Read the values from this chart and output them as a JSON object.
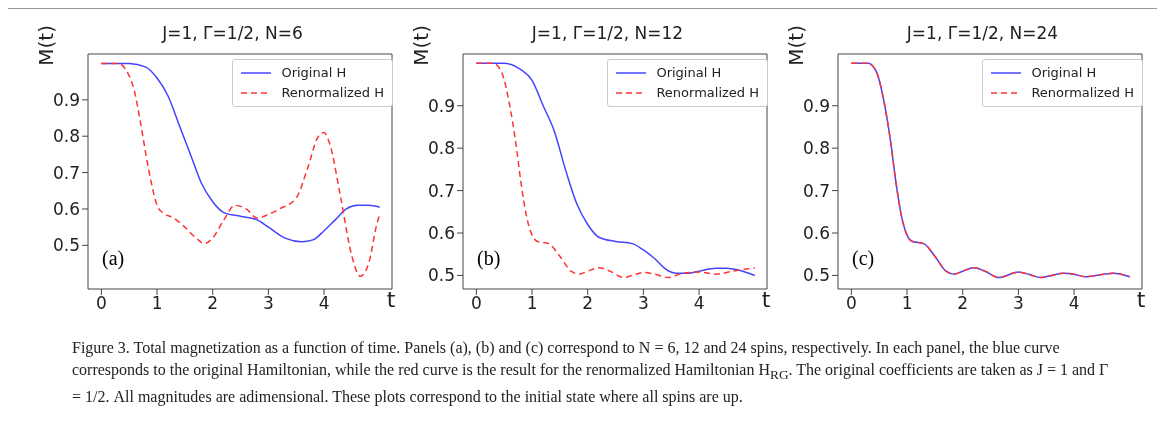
{
  "chart_data": [
    {
      "type": "line",
      "title": "J=1, Γ=1/2, N=6",
      "xlabel": "t",
      "ylabel": "M(t)",
      "xlim": [
        -0.24,
        5.22
      ],
      "ylim": [
        0.38,
        1.026
      ],
      "xticks": [
        0,
        1,
        2,
        3,
        4
      ],
      "yticks": [
        0.5,
        0.6,
        0.7,
        0.8,
        0.9
      ],
      "grid": false,
      "legend": "top right",
      "marker": "none",
      "annotations": [
        "(a)",
        "Figure 3. Total magnetization as a function of time. Panels (a), (b) and (c) correspond to N = 6, 12 and 24 spins, respectively. In each panel, the blue curve corresponds to the original Hamiltonian, while the red curve is the result for the renormalized Hamiltonian H$_{RG}$. The original coefficients are taken as J = 1 and Γ = 1/2. All magnitudes are adimensional. These plots correspond to the initial state where all spins are up."
      ],
      "series": [
        {
          "name": "Original H",
          "color": "#4444ff",
          "line_style": "solid",
          "x": [
            0,
            0.5,
            0.8,
            1.0,
            1.2,
            1.4,
            1.6,
            1.8,
            2.0,
            2.2,
            2.5,
            2.8,
            3.0,
            3.3,
            3.6,
            3.8,
            4.0,
            4.2,
            4.4,
            4.6,
            4.8,
            5.0
          ],
          "values": [
            1.0,
            1.0,
            0.99,
            0.96,
            0.91,
            0.83,
            0.75,
            0.67,
            0.62,
            0.59,
            0.58,
            0.57,
            0.55,
            0.52,
            0.51,
            0.515,
            0.54,
            0.57,
            0.6,
            0.61,
            0.61,
            0.605
          ]
        },
        {
          "name": "Renormalized H",
          "color": "#ff3333",
          "line_style": "dashed",
          "x": [
            0,
            0.3,
            0.45,
            0.6,
            0.7,
            0.8,
            0.9,
            1.0,
            1.1,
            1.3,
            1.5,
            1.7,
            1.85,
            2.0,
            2.2,
            2.4,
            2.6,
            2.8,
            3.0,
            3.2,
            3.5,
            3.7,
            3.9,
            4.0,
            4.1,
            4.3,
            4.5,
            4.65,
            4.8,
            4.95,
            5.0
          ],
          "values": [
            1.0,
            1.0,
            0.98,
            0.92,
            0.84,
            0.75,
            0.67,
            0.61,
            0.59,
            0.575,
            0.55,
            0.52,
            0.505,
            0.52,
            0.57,
            0.61,
            0.6,
            0.575,
            0.585,
            0.6,
            0.63,
            0.71,
            0.8,
            0.81,
            0.78,
            0.63,
            0.47,
            0.415,
            0.45,
            0.56,
            0.585
          ]
        }
      ]
    },
    {
      "type": "line",
      "title": "J=1, Γ=1/2, N=12",
      "xlabel": "t",
      "ylabel": "M(t)",
      "xlim": [
        -0.24,
        5.22
      ],
      "ylim": [
        0.468,
        1.022
      ],
      "xticks": [
        0,
        1,
        2,
        3,
        4
      ],
      "yticks": [
        0.5,
        0.6,
        0.7,
        0.8,
        0.9
      ],
      "grid": false,
      "legend": "top right",
      "marker": "none",
      "annotations": [
        "(b)"
      ],
      "series": [
        {
          "name": "Original H",
          "color": "#4444ff",
          "line_style": "solid",
          "x": [
            0,
            0.5,
            0.8,
            1.0,
            1.2,
            1.4,
            1.6,
            1.8,
            2.0,
            2.2,
            2.5,
            2.8,
            3.0,
            3.2,
            3.4,
            3.6,
            3.8,
            4.0,
            4.3,
            4.5,
            4.7,
            5.0
          ],
          "values": [
            1.0,
            1.0,
            0.985,
            0.96,
            0.9,
            0.84,
            0.75,
            0.67,
            0.62,
            0.59,
            0.58,
            0.575,
            0.56,
            0.54,
            0.515,
            0.505,
            0.505,
            0.51,
            0.517,
            0.517,
            0.513,
            0.5
          ]
        },
        {
          "name": "Renormalized H",
          "color": "#ff3333",
          "line_style": "dashed",
          "x": [
            0,
            0.3,
            0.45,
            0.6,
            0.7,
            0.8,
            0.9,
            1.0,
            1.1,
            1.3,
            1.5,
            1.7,
            1.85,
            2.0,
            2.2,
            2.4,
            2.65,
            2.8,
            3.0,
            3.2,
            3.45,
            3.7,
            4.0,
            4.3,
            4.6,
            5.0
          ],
          "values": [
            1.0,
            1.0,
            0.98,
            0.9,
            0.82,
            0.72,
            0.64,
            0.595,
            0.58,
            0.575,
            0.545,
            0.51,
            0.503,
            0.51,
            0.518,
            0.51,
            0.495,
            0.5,
            0.507,
            0.503,
            0.495,
            0.505,
            0.508,
            0.503,
            0.51,
            0.518
          ]
        }
      ]
    },
    {
      "type": "line",
      "title": "J=1, Γ=1/2, N=24",
      "xlabel": "t",
      "ylabel": "M(t)",
      "xlim": [
        -0.24,
        5.22
      ],
      "ylim": [
        0.468,
        1.022
      ],
      "xticks": [
        0,
        1,
        2,
        3,
        4
      ],
      "yticks": [
        0.5,
        0.6,
        0.7,
        0.8,
        0.9
      ],
      "grid": false,
      "legend": "top right",
      "marker": "none",
      "annotations": [
        "(c)"
      ],
      "series": [
        {
          "name": "Original H",
          "color": "#4444ff",
          "line_style": "solid",
          "x": [
            0,
            0.3,
            0.45,
            0.6,
            0.7,
            0.8,
            0.9,
            1.0,
            1.1,
            1.3,
            1.5,
            1.7,
            1.85,
            2.0,
            2.2,
            2.4,
            2.65,
            2.9,
            3.0,
            3.2,
            3.4,
            3.6,
            3.8,
            4.0,
            4.2,
            4.5,
            4.7,
            5.0
          ],
          "values": [
            1.0,
            1.0,
            0.98,
            0.9,
            0.82,
            0.72,
            0.64,
            0.595,
            0.58,
            0.575,
            0.545,
            0.51,
            0.503,
            0.51,
            0.518,
            0.51,
            0.495,
            0.505,
            0.508,
            0.502,
            0.495,
            0.5,
            0.505,
            0.503,
            0.497,
            0.502,
            0.505,
            0.497
          ]
        },
        {
          "name": "Renormalized H",
          "color": "#ff3333",
          "line_style": "dashed",
          "x": [
            0,
            0.3,
            0.45,
            0.6,
            0.7,
            0.8,
            0.9,
            1.0,
            1.1,
            1.3,
            1.5,
            1.7,
            1.85,
            2.0,
            2.2,
            2.4,
            2.65,
            2.9,
            3.0,
            3.2,
            3.4,
            3.6,
            3.8,
            4.0,
            4.2,
            4.5,
            4.7,
            5.0
          ],
          "values": [
            1.0,
            1.0,
            0.98,
            0.9,
            0.82,
            0.72,
            0.64,
            0.595,
            0.58,
            0.575,
            0.545,
            0.51,
            0.503,
            0.51,
            0.518,
            0.51,
            0.495,
            0.505,
            0.508,
            0.502,
            0.495,
            0.5,
            0.505,
            0.503,
            0.497,
            0.502,
            0.505,
            0.497
          ]
        }
      ]
    }
  ]
}
